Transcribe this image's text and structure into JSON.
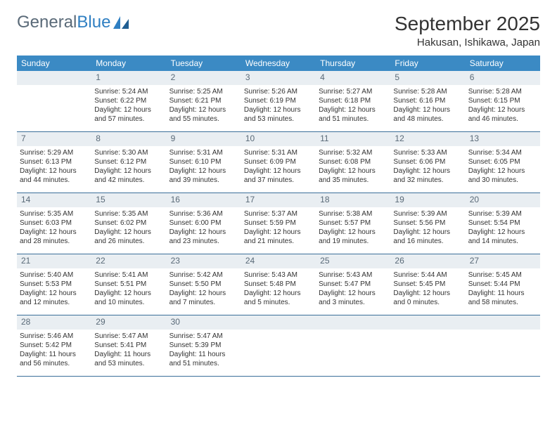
{
  "logo": {
    "text1": "General",
    "text2": "Blue"
  },
  "header": {
    "month_title": "September 2025",
    "location": "Hakusan, Ishikawa, Japan"
  },
  "colors": {
    "header_bar": "#3b8ac4",
    "daynum_bg": "#e9eef2",
    "daynum_fg": "#5a6a78",
    "week_border": "#3b6f99",
    "logo_gray": "#5a6a78",
    "logo_blue": "#2f7fc2"
  },
  "weekdays": [
    "Sunday",
    "Monday",
    "Tuesday",
    "Wednesday",
    "Thursday",
    "Friday",
    "Saturday"
  ],
  "weeks": [
    [
      {
        "n": "",
        "lines": []
      },
      {
        "n": "1",
        "lines": [
          "Sunrise: 5:24 AM",
          "Sunset: 6:22 PM",
          "Daylight: 12 hours",
          "and 57 minutes."
        ]
      },
      {
        "n": "2",
        "lines": [
          "Sunrise: 5:25 AM",
          "Sunset: 6:21 PM",
          "Daylight: 12 hours",
          "and 55 minutes."
        ]
      },
      {
        "n": "3",
        "lines": [
          "Sunrise: 5:26 AM",
          "Sunset: 6:19 PM",
          "Daylight: 12 hours",
          "and 53 minutes."
        ]
      },
      {
        "n": "4",
        "lines": [
          "Sunrise: 5:27 AM",
          "Sunset: 6:18 PM",
          "Daylight: 12 hours",
          "and 51 minutes."
        ]
      },
      {
        "n": "5",
        "lines": [
          "Sunrise: 5:28 AM",
          "Sunset: 6:16 PM",
          "Daylight: 12 hours",
          "and 48 minutes."
        ]
      },
      {
        "n": "6",
        "lines": [
          "Sunrise: 5:28 AM",
          "Sunset: 6:15 PM",
          "Daylight: 12 hours",
          "and 46 minutes."
        ]
      }
    ],
    [
      {
        "n": "7",
        "lines": [
          "Sunrise: 5:29 AM",
          "Sunset: 6:13 PM",
          "Daylight: 12 hours",
          "and 44 minutes."
        ]
      },
      {
        "n": "8",
        "lines": [
          "Sunrise: 5:30 AM",
          "Sunset: 6:12 PM",
          "Daylight: 12 hours",
          "and 42 minutes."
        ]
      },
      {
        "n": "9",
        "lines": [
          "Sunrise: 5:31 AM",
          "Sunset: 6:10 PM",
          "Daylight: 12 hours",
          "and 39 minutes."
        ]
      },
      {
        "n": "10",
        "lines": [
          "Sunrise: 5:31 AM",
          "Sunset: 6:09 PM",
          "Daylight: 12 hours",
          "and 37 minutes."
        ]
      },
      {
        "n": "11",
        "lines": [
          "Sunrise: 5:32 AM",
          "Sunset: 6:08 PM",
          "Daylight: 12 hours",
          "and 35 minutes."
        ]
      },
      {
        "n": "12",
        "lines": [
          "Sunrise: 5:33 AM",
          "Sunset: 6:06 PM",
          "Daylight: 12 hours",
          "and 32 minutes."
        ]
      },
      {
        "n": "13",
        "lines": [
          "Sunrise: 5:34 AM",
          "Sunset: 6:05 PM",
          "Daylight: 12 hours",
          "and 30 minutes."
        ]
      }
    ],
    [
      {
        "n": "14",
        "lines": [
          "Sunrise: 5:35 AM",
          "Sunset: 6:03 PM",
          "Daylight: 12 hours",
          "and 28 minutes."
        ]
      },
      {
        "n": "15",
        "lines": [
          "Sunrise: 5:35 AM",
          "Sunset: 6:02 PM",
          "Daylight: 12 hours",
          "and 26 minutes."
        ]
      },
      {
        "n": "16",
        "lines": [
          "Sunrise: 5:36 AM",
          "Sunset: 6:00 PM",
          "Daylight: 12 hours",
          "and 23 minutes."
        ]
      },
      {
        "n": "17",
        "lines": [
          "Sunrise: 5:37 AM",
          "Sunset: 5:59 PM",
          "Daylight: 12 hours",
          "and 21 minutes."
        ]
      },
      {
        "n": "18",
        "lines": [
          "Sunrise: 5:38 AM",
          "Sunset: 5:57 PM",
          "Daylight: 12 hours",
          "and 19 minutes."
        ]
      },
      {
        "n": "19",
        "lines": [
          "Sunrise: 5:39 AM",
          "Sunset: 5:56 PM",
          "Daylight: 12 hours",
          "and 16 minutes."
        ]
      },
      {
        "n": "20",
        "lines": [
          "Sunrise: 5:39 AM",
          "Sunset: 5:54 PM",
          "Daylight: 12 hours",
          "and 14 minutes."
        ]
      }
    ],
    [
      {
        "n": "21",
        "lines": [
          "Sunrise: 5:40 AM",
          "Sunset: 5:53 PM",
          "Daylight: 12 hours",
          "and 12 minutes."
        ]
      },
      {
        "n": "22",
        "lines": [
          "Sunrise: 5:41 AM",
          "Sunset: 5:51 PM",
          "Daylight: 12 hours",
          "and 10 minutes."
        ]
      },
      {
        "n": "23",
        "lines": [
          "Sunrise: 5:42 AM",
          "Sunset: 5:50 PM",
          "Daylight: 12 hours",
          "and 7 minutes."
        ]
      },
      {
        "n": "24",
        "lines": [
          "Sunrise: 5:43 AM",
          "Sunset: 5:48 PM",
          "Daylight: 12 hours",
          "and 5 minutes."
        ]
      },
      {
        "n": "25",
        "lines": [
          "Sunrise: 5:43 AM",
          "Sunset: 5:47 PM",
          "Daylight: 12 hours",
          "and 3 minutes."
        ]
      },
      {
        "n": "26",
        "lines": [
          "Sunrise: 5:44 AM",
          "Sunset: 5:45 PM",
          "Daylight: 12 hours",
          "and 0 minutes."
        ]
      },
      {
        "n": "27",
        "lines": [
          "Sunrise: 5:45 AM",
          "Sunset: 5:44 PM",
          "Daylight: 11 hours",
          "and 58 minutes."
        ]
      }
    ],
    [
      {
        "n": "28",
        "lines": [
          "Sunrise: 5:46 AM",
          "Sunset: 5:42 PM",
          "Daylight: 11 hours",
          "and 56 minutes."
        ]
      },
      {
        "n": "29",
        "lines": [
          "Sunrise: 5:47 AM",
          "Sunset: 5:41 PM",
          "Daylight: 11 hours",
          "and 53 minutes."
        ]
      },
      {
        "n": "30",
        "lines": [
          "Sunrise: 5:47 AM",
          "Sunset: 5:39 PM",
          "Daylight: 11 hours",
          "and 51 minutes."
        ]
      },
      {
        "n": "",
        "lines": []
      },
      {
        "n": "",
        "lines": []
      },
      {
        "n": "",
        "lines": []
      },
      {
        "n": "",
        "lines": []
      }
    ]
  ]
}
